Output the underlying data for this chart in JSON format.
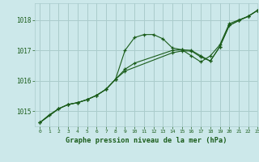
{
  "title": "Graphe pression niveau de la mer (hPa)",
  "background_color": "#cce8ea",
  "plot_bg_color": "#cce8ea",
  "grid_color": "#aacccc",
  "line_color": "#1a5c1a",
  "xlim": [
    -0.5,
    23
  ],
  "ylim": [
    1014.5,
    1018.55
  ],
  "yticks": [
    1015,
    1016,
    1017,
    1018
  ],
  "xticks": [
    0,
    1,
    2,
    3,
    4,
    5,
    6,
    7,
    8,
    9,
    10,
    11,
    12,
    13,
    14,
    15,
    16,
    17,
    18,
    19,
    20,
    21,
    22,
    23
  ],
  "series1_x": [
    0,
    1,
    2,
    3,
    4,
    5,
    6,
    7,
    8,
    9,
    10,
    11,
    12,
    13,
    14,
    15,
    16,
    17,
    18,
    19,
    20,
    21,
    22,
    23
  ],
  "series1_y": [
    1014.62,
    1014.88,
    1015.08,
    1015.22,
    1015.28,
    1015.38,
    1015.52,
    1015.72,
    1016.05,
    1017.0,
    1017.42,
    1017.52,
    1017.52,
    1017.38,
    1017.08,
    1017.02,
    1016.82,
    1016.62,
    1016.82,
    1017.18,
    1017.88,
    1018.0,
    1018.12,
    1018.32
  ],
  "series1_markers": [
    0,
    1,
    2,
    3,
    4,
    5,
    6,
    7,
    8,
    9,
    10,
    11,
    12,
    13,
    14,
    15,
    16,
    17,
    18,
    19,
    20,
    21,
    22,
    23
  ],
  "series2_x": [
    0,
    2,
    3,
    4,
    5,
    6,
    7,
    8,
    9,
    10,
    14,
    15,
    16,
    17,
    18,
    19,
    20,
    21,
    22,
    23
  ],
  "series2_y": [
    1014.62,
    1015.08,
    1015.22,
    1015.28,
    1015.38,
    1015.52,
    1015.72,
    1016.05,
    1016.38,
    1016.58,
    1017.0,
    1017.02,
    1017.0,
    1016.82,
    1016.65,
    1017.12,
    1017.82,
    1017.98,
    1018.12,
    1018.32
  ],
  "series3_x": [
    0,
    2,
    3,
    4,
    5,
    6,
    7,
    8,
    9,
    14,
    15,
    16,
    17,
    18,
    19,
    20,
    21,
    22,
    23
  ],
  "series3_y": [
    1014.62,
    1015.08,
    1015.22,
    1015.28,
    1015.38,
    1015.52,
    1015.72,
    1016.05,
    1016.32,
    1016.92,
    1016.98,
    1016.98,
    1016.78,
    1016.65,
    1017.12,
    1017.82,
    1017.98,
    1018.12,
    1018.32
  ]
}
